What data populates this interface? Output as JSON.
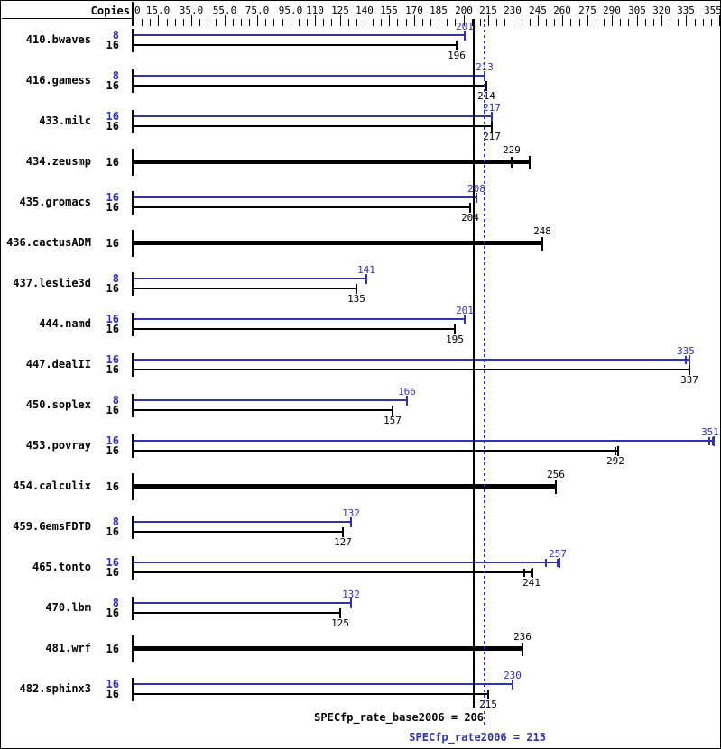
{
  "header": {
    "copies_label": "Copies"
  },
  "footer": {
    "base_result": "SPECfp_rate_base2006 = 206",
    "peak_result": "SPECfp_rate2006 = 213"
  },
  "colors": {
    "peak": "#3333aa",
    "base": "#000000",
    "background": "#ffffff"
  },
  "chart_data": {
    "type": "bar",
    "orientation": "horizontal",
    "title": "",
    "xlabel": "",
    "ylabel": "Copies",
    "legend_position": "none",
    "grid": false,
    "axis": {
      "min": 0,
      "max": 355,
      "minor_step": 5,
      "labeled_ticks": [
        {
          "v": 0,
          "t": "0"
        },
        {
          "v": 15,
          "t": "15.0"
        },
        {
          "v": 35,
          "t": "35.0"
        },
        {
          "v": 55,
          "t": "55.0"
        },
        {
          "v": 75,
          "t": "75.0"
        },
        {
          "v": 95,
          "t": "95.0"
        },
        {
          "v": 110,
          "t": "110"
        },
        {
          "v": 125,
          "t": "125"
        },
        {
          "v": 140,
          "t": "140"
        },
        {
          "v": 155,
          "t": "155"
        },
        {
          "v": 170,
          "t": "170"
        },
        {
          "v": 185,
          "t": "185"
        },
        {
          "v": 200,
          "t": "200"
        },
        {
          "v": 215,
          "t": "215"
        },
        {
          "v": 230,
          "t": "230"
        },
        {
          "v": 245,
          "t": "245"
        },
        {
          "v": 260,
          "t": "260"
        },
        {
          "v": 275,
          "t": "275"
        },
        {
          "v": 290,
          "t": "290"
        },
        {
          "v": 305,
          "t": "305"
        },
        {
          "v": 320,
          "t": "320"
        },
        {
          "v": 335,
          "t": "335"
        },
        {
          "v": 355,
          "t": "355"
        }
      ]
    },
    "reference_lines": [
      {
        "name": "SPECfp_rate_base2006",
        "value": 206,
        "style": "solid",
        "series": "base"
      },
      {
        "name": "SPECfp_rate2006",
        "value": 213,
        "style": "dotted",
        "series": "peak"
      }
    ],
    "groups": [
      {
        "name": "410.bwaves",
        "bars": [
          {
            "copies": "8",
            "series": "peak",
            "value": 201
          },
          {
            "copies": "16",
            "series": "base",
            "value": 196
          }
        ]
      },
      {
        "name": "416.gamess",
        "bars": [
          {
            "copies": "8",
            "series": "peak",
            "value": 213
          },
          {
            "copies": "16",
            "series": "base",
            "value": 214
          }
        ]
      },
      {
        "name": "433.milc",
        "bars": [
          {
            "copies": "16",
            "series": "peak",
            "value": 217
          },
          {
            "copies": "16",
            "series": "base",
            "value": 217
          }
        ]
      },
      {
        "name": "434.zeusmp",
        "bars": [
          {
            "copies": "16",
            "series": "base",
            "thick": true,
            "value": 229,
            "bar_end": 240
          }
        ]
      },
      {
        "name": "435.gromacs",
        "bars": [
          {
            "copies": "16",
            "series": "peak",
            "value": 208
          },
          {
            "copies": "16",
            "series": "base",
            "value": 204
          }
        ]
      },
      {
        "name": "436.cactusADM",
        "bars": [
          {
            "copies": "16",
            "series": "base",
            "thick": true,
            "value": 248
          }
        ]
      },
      {
        "name": "437.leslie3d",
        "bars": [
          {
            "copies": "8",
            "series": "peak",
            "value": 141
          },
          {
            "copies": "16",
            "series": "base",
            "value": 135
          }
        ]
      },
      {
        "name": "444.namd",
        "bars": [
          {
            "copies": "16",
            "series": "peak",
            "value": 201
          },
          {
            "copies": "16",
            "series": "base",
            "value": 195
          }
        ]
      },
      {
        "name": "447.dealII",
        "bars": [
          {
            "copies": "16",
            "series": "peak",
            "value": 335,
            "bar_end": 337
          },
          {
            "copies": "16",
            "series": "base",
            "value": 337
          }
        ]
      },
      {
        "name": "450.soplex",
        "bars": [
          {
            "copies": "8",
            "series": "peak",
            "value": 166
          },
          {
            "copies": "16",
            "series": "base",
            "value": 157
          }
        ]
      },
      {
        "name": "453.povray",
        "bars": [
          {
            "copies": "16",
            "series": "peak",
            "value": 351,
            "bar_end": 352,
            "min_tick": 349
          },
          {
            "copies": "16",
            "series": "base",
            "value": 292,
            "bar_end": 294
          }
        ]
      },
      {
        "name": "454.calculix",
        "bars": [
          {
            "copies": "16",
            "series": "base",
            "thick": true,
            "value": 256
          }
        ]
      },
      {
        "name": "459.GemsFDTD",
        "bars": [
          {
            "copies": "8",
            "series": "peak",
            "value": 132
          },
          {
            "copies": "16",
            "series": "base",
            "value": 127
          }
        ]
      },
      {
        "name": "465.tonto",
        "bars": [
          {
            "copies": "16",
            "series": "peak",
            "value": 257,
            "bar_end": 258,
            "min_tick": 250
          },
          {
            "copies": "16",
            "series": "base",
            "value": 241,
            "bar_end": 242,
            "min_tick": 237
          }
        ]
      },
      {
        "name": "470.lbm",
        "bars": [
          {
            "copies": "8",
            "series": "peak",
            "value": 132
          },
          {
            "copies": "16",
            "series": "base",
            "value": 125
          }
        ]
      },
      {
        "name": "481.wrf",
        "bars": [
          {
            "copies": "16",
            "series": "base",
            "thick": true,
            "value": 236
          }
        ]
      },
      {
        "name": "482.sphinx3",
        "bars": [
          {
            "copies": "16",
            "series": "peak",
            "value": 230
          },
          {
            "copies": "16",
            "series": "base",
            "value": 215
          }
        ]
      }
    ]
  }
}
